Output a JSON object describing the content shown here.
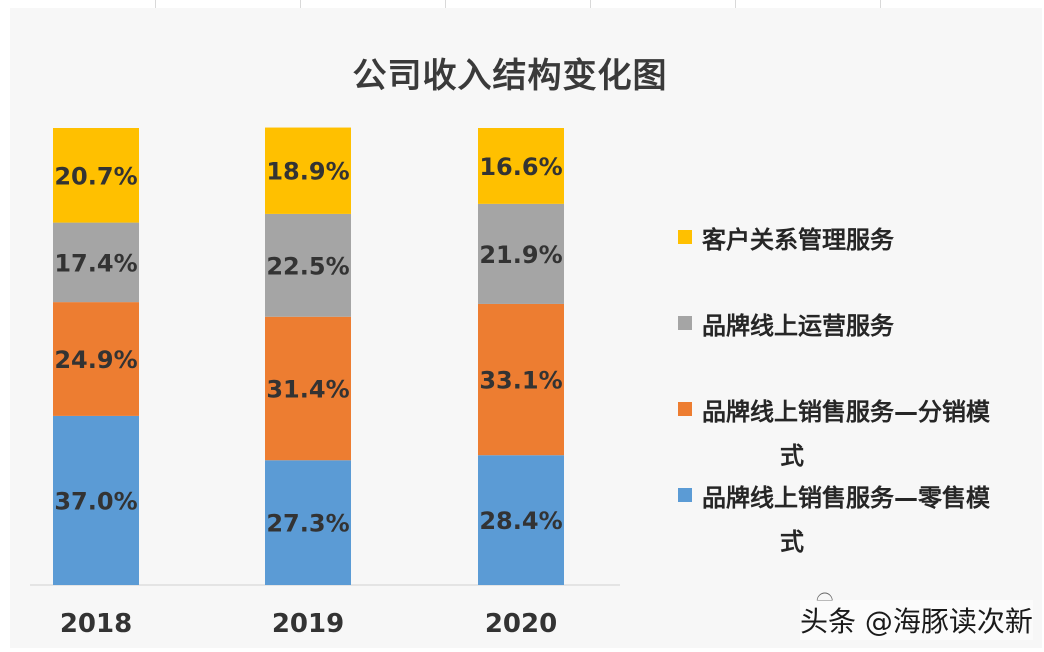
{
  "chart_data": {
    "type": "bar",
    "stacked": true,
    "title": "公司收入结构变化图",
    "categories": [
      "2018",
      "2019",
      "2020"
    ],
    "series": [
      {
        "name": "品牌线上销售服务—零售模式",
        "legend_line1": "品牌线上销售服务—零售模",
        "legend_line2": "式",
        "color": "#5b9bd5",
        "values": [
          37.0,
          27.3,
          28.4
        ],
        "labels": [
          "37.0%",
          "27.3%",
          "28.4%"
        ]
      },
      {
        "name": "品牌线上销售服务—分销模式",
        "legend_line1": "品牌线上销售服务—分销模",
        "legend_line2": "式",
        "color": "#ed7d31",
        "values": [
          24.9,
          31.4,
          33.1
        ],
        "labels": [
          "24.9%",
          "31.4%",
          "33.1%"
        ]
      },
      {
        "name": "品牌线上运营服务",
        "legend_line1": "品牌线上运营服务",
        "legend_line2": "",
        "color": "#a5a5a5",
        "values": [
          17.4,
          22.5,
          21.9
        ],
        "labels": [
          "17.4%",
          "22.5%",
          "21.9%"
        ]
      },
      {
        "name": "客户关系管理服务",
        "legend_line1": "客户关系管理服务",
        "legend_line2": "",
        "color": "#ffc000",
        "values": [
          20.7,
          18.9,
          16.6
        ],
        "labels": [
          "20.7%",
          "18.9%",
          "16.6%"
        ]
      }
    ],
    "ylim": [
      0,
      100
    ],
    "grid": false,
    "legend_position": "right"
  },
  "watermark": {
    "text": "头条 @海豚读次新"
  }
}
